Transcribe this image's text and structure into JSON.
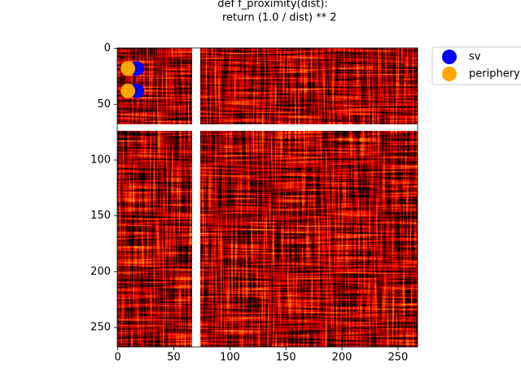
{
  "chart_data": {
    "type": "scatter",
    "title": [
      "def f_proximity(dist):",
      "    return (1.0 / dist) ** 2"
    ],
    "xlim": [
      -0.5,
      267.5
    ],
    "ylim": [
      267.5,
      -0.5
    ],
    "xticks": [
      0,
      50,
      100,
      150,
      200,
      250
    ],
    "yticks": [
      0,
      50,
      100,
      150,
      200,
      250
    ],
    "legend": "outside upper right",
    "series": [
      {
        "name": "sv",
        "color": "#0000ff",
        "x": [
          17,
          17
        ],
        "y": [
          18,
          38
        ]
      },
      {
        "name": "periphery",
        "color": "#ffa500",
        "x": [
          9,
          9
        ],
        "y": [
          18,
          38
        ]
      }
    ]
  }
}
